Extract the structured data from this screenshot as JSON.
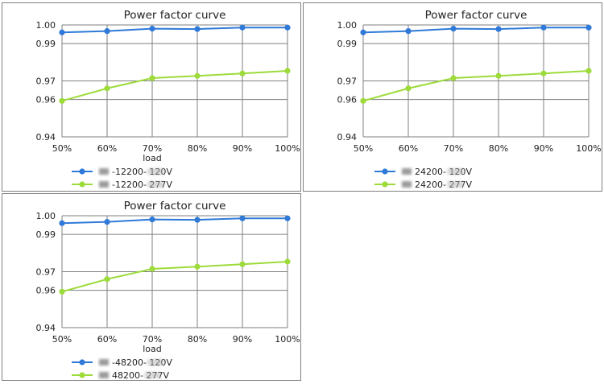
{
  "chart_data": [
    {
      "type": "line",
      "title": "Power factor curve",
      "xlabel": "load",
      "ylabel": "",
      "categories": [
        "50%",
        "60%",
        "70%",
        "80%",
        "90%",
        "100%"
      ],
      "yticks": [
        "0.94",
        "0.96",
        "0.97",
        "0.99",
        "1.00"
      ],
      "ylim": [
        0.94,
        1.0
      ],
      "grid": true,
      "legend_position": "bottom-left",
      "series": [
        {
          "name": "-12200- 120V",
          "color": "#2f7ad8",
          "values": [
            0.996,
            0.9967,
            0.998,
            0.9978,
            0.9986,
            0.9986
          ]
        },
        {
          "name": "-12200- 277V",
          "color": "#9ddb3a",
          "values": [
            0.9593,
            0.966,
            0.9715,
            0.9727,
            0.974,
            0.9754
          ]
        }
      ]
    },
    {
      "type": "line",
      "title": "Power factor curve",
      "xlabel": "",
      "ylabel": "",
      "categories": [
        "50%",
        "60%",
        "70%",
        "80%",
        "90%",
        "100%"
      ],
      "yticks": [
        "0.94",
        "0.96",
        "0.97",
        "0.99",
        "1.00"
      ],
      "ylim": [
        0.94,
        1.0
      ],
      "grid": true,
      "legend_position": "bottom-left",
      "series": [
        {
          "name": "24200- 120V",
          "color": "#2f7ad8",
          "values": [
            0.996,
            0.9967,
            0.998,
            0.9978,
            0.9986,
            0.9986
          ]
        },
        {
          "name": "24200- 277V",
          "color": "#9ddb3a",
          "values": [
            0.9593,
            0.966,
            0.9715,
            0.9727,
            0.974,
            0.9754
          ]
        }
      ]
    },
    {
      "type": "line",
      "title": "Power factor curve",
      "xlabel": "load",
      "ylabel": "",
      "categories": [
        "50%",
        "60%",
        "70%",
        "80%",
        "90%",
        "100%"
      ],
      "yticks": [
        "0.94",
        "0.96",
        "0.97",
        "0.99",
        "1.00"
      ],
      "ylim": [
        0.94,
        1.0
      ],
      "grid": true,
      "legend_position": "bottom-left",
      "series": [
        {
          "name": "-48200- 120V",
          "color": "#2f7ad8",
          "values": [
            0.996,
            0.9967,
            0.998,
            0.9978,
            0.9986,
            0.9986
          ]
        },
        {
          "name": "48200- 277V",
          "color": "#9ddb3a",
          "values": [
            0.9593,
            0.966,
            0.9715,
            0.9727,
            0.974,
            0.9754
          ]
        }
      ]
    }
  ]
}
